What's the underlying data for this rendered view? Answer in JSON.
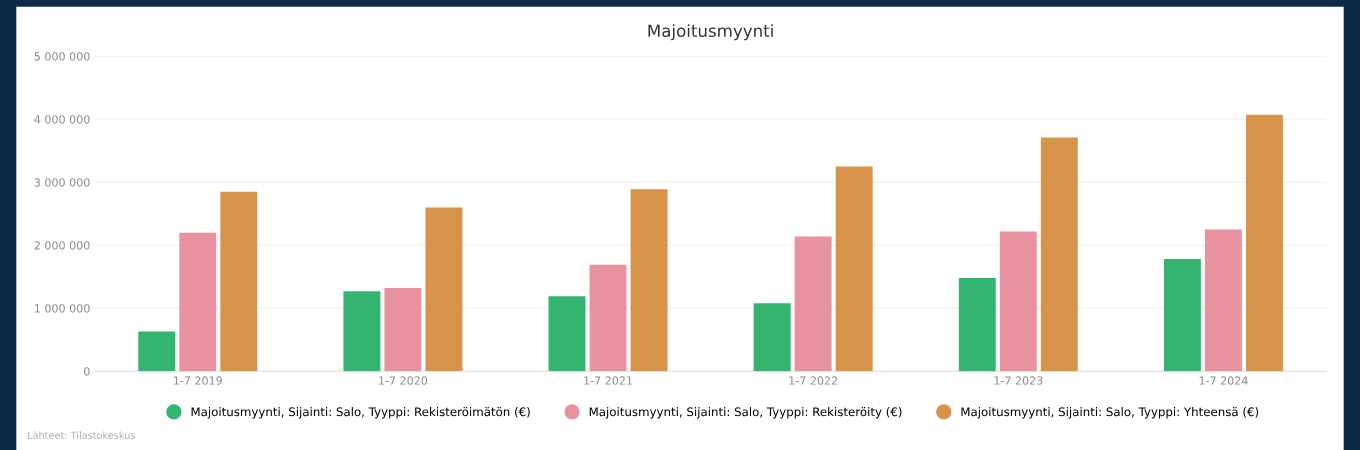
{
  "chart_data": {
    "type": "bar",
    "title": "Majoitusmyynti",
    "categories": [
      "1-7 2019",
      "1-7 2020",
      "1-7 2021",
      "1-7 2022",
      "1-7 2023",
      "1-7 2024"
    ],
    "series": [
      {
        "name": "Majoitusmyynti, Sijainti: Salo, Tyyppi: Rekisteröimätön (€)",
        "color": "#34b56f",
        "values": [
          630000,
          1270000,
          1190000,
          1080000,
          1480000,
          1780000
        ]
      },
      {
        "name": "Majoitusmyynti, Sijainti: Salo, Tyyppi: Rekisteröity (€)",
        "color": "#e8929f",
        "values": [
          2200000,
          1320000,
          1690000,
          2140000,
          2220000,
          2250000
        ]
      },
      {
        "name": "Majoitusmyynti, Sijainti: Salo, Tyyppi: Yhteensä (€)",
        "color": "#d8934b",
        "values": [
          2850000,
          2600000,
          2890000,
          3250000,
          3710000,
          4070000
        ]
      }
    ],
    "ylim": [
      0,
      5000000
    ],
    "yticks": [
      0,
      {
        "value": 1000000,
        "label": "1 000 000"
      },
      {
        "value": 2000000,
        "label": "2 000 000"
      },
      {
        "value": 3000000,
        "label": "3 000 000"
      },
      {
        "value": 4000000,
        "label": "4 000 000"
      },
      {
        "value": 5000000,
        "label": "5 000 000"
      }
    ],
    "grid": "y",
    "legend": "bottom",
    "annotations": [
      "Lähteet: Tilastokeskus"
    ]
  }
}
